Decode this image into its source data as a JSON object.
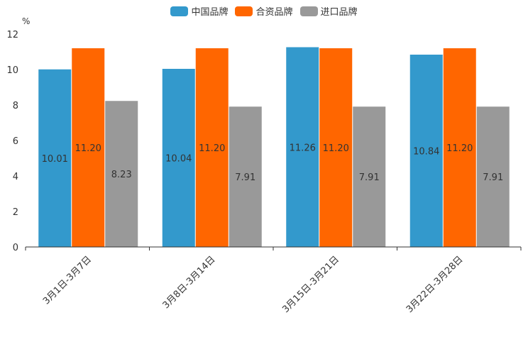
{
  "chart_data": {
    "type": "bar",
    "title": "",
    "ylabel": "%",
    "xlabel": "",
    "ylim": [
      0,
      12
    ],
    "yticks": [
      0,
      2,
      4,
      6,
      8,
      10,
      12
    ],
    "categories": [
      "3月1日-3月7日",
      "3月8日-3月14日",
      "3月15日-3月21日",
      "3月22日-3月28日"
    ],
    "series": [
      {
        "name": "中国品牌",
        "color": "#3399cc",
        "values": [
          10.01,
          10.04,
          11.26,
          10.84
        ],
        "labels": [
          "10.01",
          "10.04",
          "11.26",
          "10.84"
        ]
      },
      {
        "name": "合资品牌",
        "color": "#ff6600",
        "values": [
          11.2,
          11.2,
          11.2,
          11.2
        ],
        "labels": [
          "11.20",
          "11.20",
          "11.20",
          "11.20"
        ]
      },
      {
        "name": "进口品牌",
        "color": "#999999",
        "values": [
          8.23,
          7.91,
          7.91,
          7.91
        ],
        "labels": [
          "8.23",
          "7.91",
          "7.91",
          "7.91"
        ]
      }
    ],
    "legend_position": "top-center",
    "grid": false
  }
}
